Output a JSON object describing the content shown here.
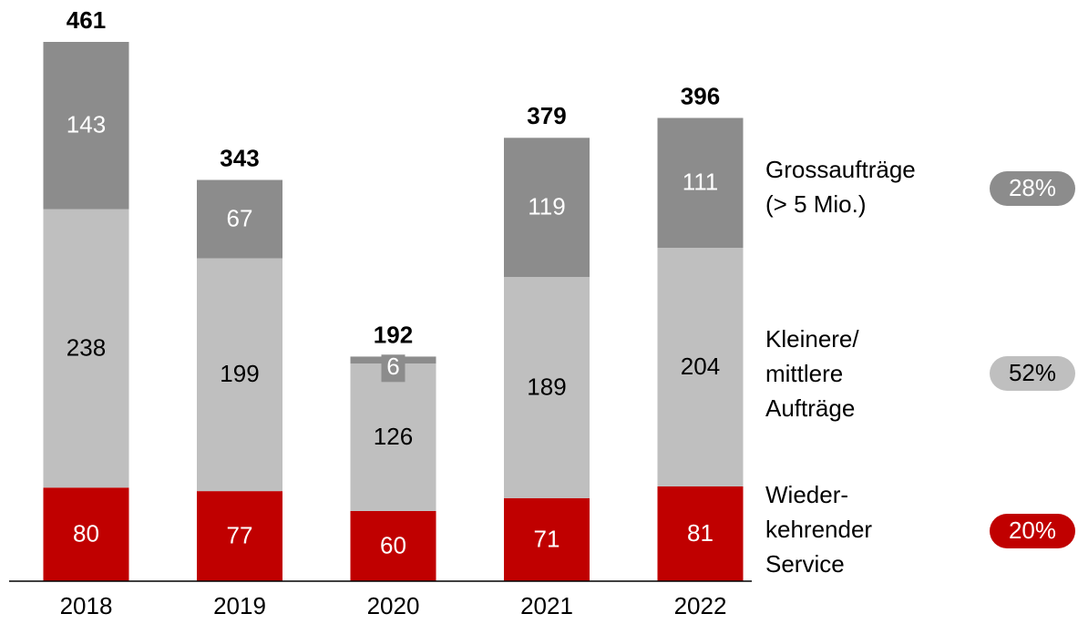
{
  "chart_data": {
    "type": "stacked_bar",
    "categories": [
      "2018",
      "2019",
      "2020",
      "2021",
      "2022"
    ],
    "series": [
      {
        "name": "Wieder-\nkehrender\nService",
        "color": "#c00000",
        "values": [
          80,
          77,
          60,
          71,
          81
        ],
        "share": 20,
        "share_label": "20%"
      },
      {
        "name": "Kleinere/\nmittlere\nAufträge",
        "color": "#bfbfbf",
        "values": [
          238,
          199,
          126,
          189,
          204
        ],
        "share": 52,
        "share_label": "52%"
      },
      {
        "name": "Grossaufträge\n(> 5 Mio.)",
        "color": "#8c8c8c",
        "values": [
          143,
          67,
          6,
          119,
          111
        ],
        "share": 28,
        "share_label": "28%"
      }
    ],
    "totals": [
      461,
      343,
      192,
      379,
      396
    ],
    "ylim": [
      0,
      461
    ]
  }
}
